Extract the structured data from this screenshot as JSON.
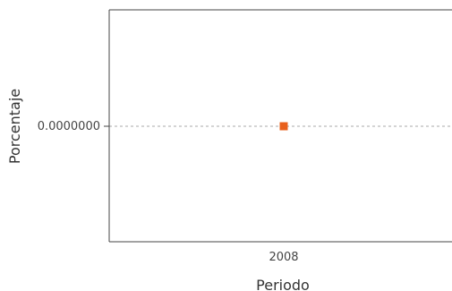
{
  "chart_data": {
    "type": "line",
    "xlabel": "Periodo",
    "ylabel": "Porcentaje",
    "categories": [
      "2008"
    ],
    "y_ticks": [
      "0.0000000"
    ],
    "series": [
      {
        "values": [
          0
        ],
        "color": "#e8601c"
      }
    ],
    "grid": "horizontal dashed at y = 0",
    "legend": "none"
  }
}
